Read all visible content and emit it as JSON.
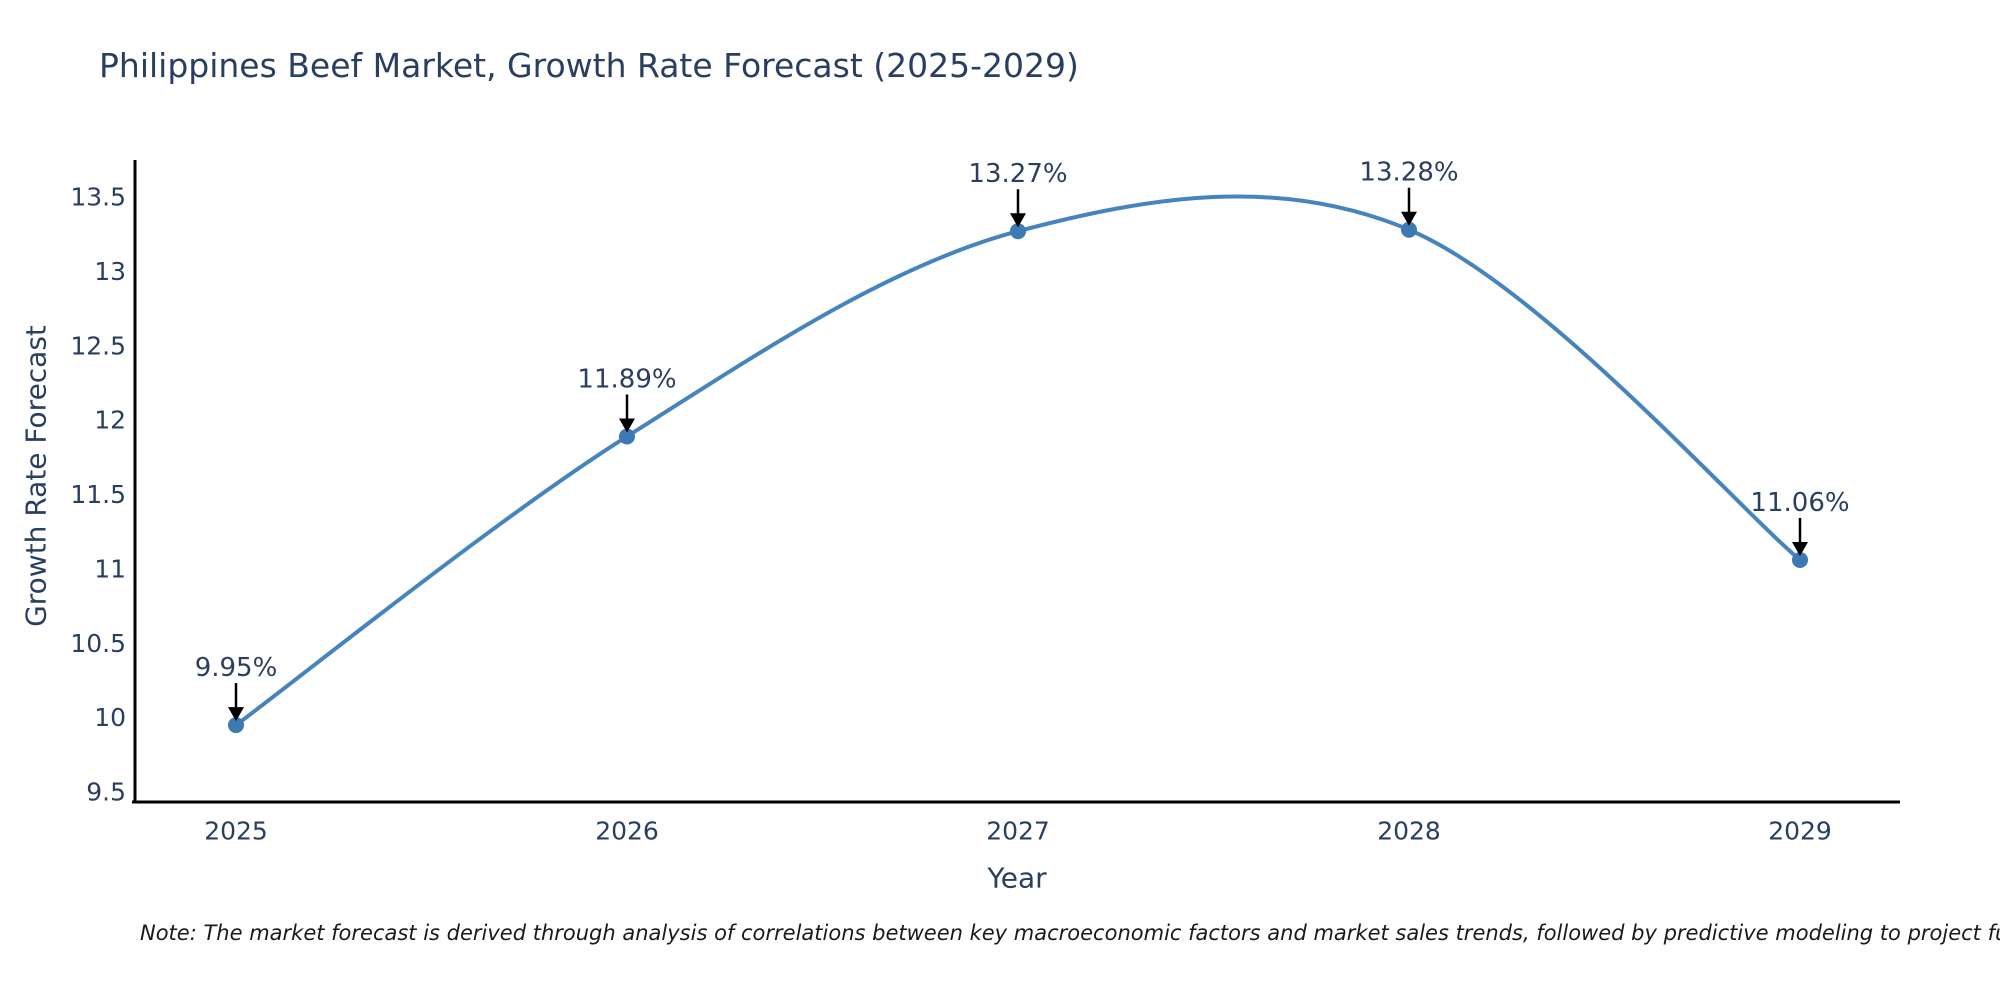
{
  "title": "Philippines Beef Market, Growth Rate Forecast (2025-2029)",
  "note": "Note: The market forecast is derived through analysis of correlations between key macroeconomic factors and market sales trends, followed by predictive modeling to project future sal",
  "chart_data": {
    "type": "line",
    "title": "Philippines Beef Market, Growth Rate Forecast (2025-2029)",
    "xlabel": "Year",
    "ylabel": "Growth Rate Forecast",
    "categories": [
      "2025",
      "2026",
      "2027",
      "2028",
      "2029"
    ],
    "x": [
      2025,
      2026,
      2027,
      2028,
      2029
    ],
    "series": [
      {
        "name": "Growth Rate Forecast",
        "values": [
          9.95,
          11.89,
          13.27,
          13.28,
          11.06
        ]
      }
    ],
    "point_labels": [
      "9.95%",
      "11.89%",
      "13.27%",
      "13.28%",
      "11.06%"
    ],
    "ylim": [
      9.5,
      13.5
    ],
    "yticks": [
      9.5,
      10,
      10.5,
      11,
      11.5,
      12,
      12.5,
      13,
      13.5
    ],
    "line_shape": "spline",
    "grid": false,
    "legend_position": "none",
    "annotation_arrows": true,
    "colors": {
      "line": "#4584bd",
      "marker": "#3d79b2",
      "axis_line": "#000000",
      "tick_text": "#2a3f5f",
      "title_text": "#2a3f5f",
      "annotation_text": "#2a3f5f",
      "arrow": "#000000",
      "note_text": "#1a1a1a",
      "background": "#ffffff"
    }
  }
}
